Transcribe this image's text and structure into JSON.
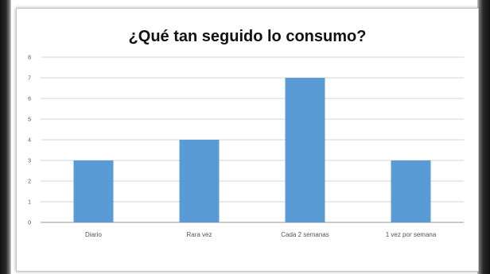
{
  "chart_data": {
    "type": "bar",
    "title": "¿Qué tan seguido lo consumo?",
    "xlabel": "",
    "ylabel": "",
    "categories": [
      "Diario",
      "Rara vez",
      "Cada 2 semanas",
      "1 vez por semana"
    ],
    "values": [
      3,
      4,
      7,
      3
    ],
    "ylim": [
      0,
      8
    ],
    "yticks": [
      "0",
      "1",
      "2",
      "3",
      "4",
      "5",
      "6",
      "7",
      "8"
    ],
    "grid": true,
    "legend": "none",
    "bar_color": "#5b9bd5"
  }
}
